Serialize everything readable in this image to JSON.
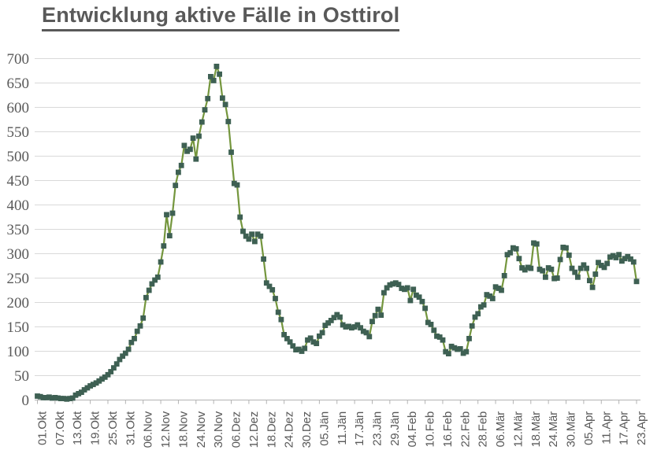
{
  "chart_data": {
    "type": "line",
    "title": "Entwicklung aktive Fälle in Osttirol",
    "xlabel": "",
    "ylabel": "",
    "ylim": [
      0,
      700
    ],
    "y_tick_interval": 50,
    "y_tick_labels": [
      "0",
      "50",
      "100",
      "150",
      "200",
      "250",
      "300",
      "350",
      "400",
      "450",
      "500",
      "550",
      "600",
      "650",
      "700"
    ],
    "x_interval": "daily",
    "x_ticks_every_n_points": 6,
    "x_tick_labels": [
      "01.Okt",
      "07.Okt",
      "13.Okt",
      "19.Okt",
      "25.Okt",
      "31.Okt",
      "06.Nov",
      "12.Nov",
      "18.Nov",
      "24.Nov",
      "30.Nov",
      "06.Dez",
      "12.Dez",
      "18.Dez",
      "24.Dez",
      "30.Dez",
      "05.Jän",
      "11.Jän",
      "17.Jän",
      "23.Jän",
      "29.Jän",
      "04.Feb",
      "10.Feb",
      "16.Feb",
      "22.Feb",
      "28.Feb",
      "06.Mär",
      "12.Mär",
      "18.Mär",
      "24.Mär",
      "30.Mär",
      "05.Apr",
      "11.Apr",
      "17.Apr",
      "23.Apr"
    ],
    "grid": true,
    "legend": false,
    "marker": "square",
    "colors": {
      "line": "#74963d",
      "marker": "#3e6053",
      "grid": "#d9d9d9",
      "axis": "#b3b3b3",
      "text": "#595959",
      "title": "#595959"
    },
    "values": [
      8,
      7,
      5,
      5,
      6,
      4,
      5,
      4,
      3,
      3,
      2,
      3,
      4,
      10,
      13,
      16,
      21,
      25,
      29,
      32,
      35,
      39,
      43,
      47,
      52,
      58,
      66,
      74,
      83,
      90,
      96,
      104,
      118,
      126,
      141,
      152,
      168,
      210,
      225,
      238,
      246,
      252,
      283,
      316,
      380,
      337,
      383,
      440,
      467,
      481,
      522,
      510,
      514,
      537,
      494,
      541,
      570,
      595,
      618,
      663,
      655,
      684,
      668,
      619,
      606,
      571,
      508,
      444,
      441,
      375,
      346,
      336,
      330,
      340,
      325,
      340,
      336,
      289,
      240,
      233,
      226,
      208,
      180,
      165,
      134,
      126,
      119,
      111,
      103,
      104,
      100,
      106,
      123,
      127,
      119,
      116,
      131,
      138,
      153,
      158,
      163,
      169,
      175,
      170,
      154,
      150,
      151,
      148,
      150,
      154,
      148,
      141,
      138,
      130,
      161,
      173,
      186,
      174,
      220,
      230,
      236,
      238,
      240,
      237,
      229,
      227,
      230,
      204,
      227,
      215,
      211,
      202,
      188,
      159,
      155,
      143,
      131,
      129,
      123,
      99,
      95,
      110,
      107,
      104,
      105,
      96,
      99,
      126,
      152,
      170,
      177,
      191,
      195,
      216,
      213,
      208,
      232,
      229,
      225,
      255,
      298,
      302,
      312,
      310,
      290,
      271,
      267,
      272,
      270,
      322,
      320,
      268,
      265,
      252,
      271,
      268,
      249,
      250,
      288,
      313,
      312,
      297,
      270,
      262,
      252,
      270,
      277,
      270,
      245,
      231,
      258,
      282,
      276,
      272,
      280,
      293,
      296,
      292,
      298,
      285,
      290,
      294,
      289,
      283,
      243
    ]
  }
}
